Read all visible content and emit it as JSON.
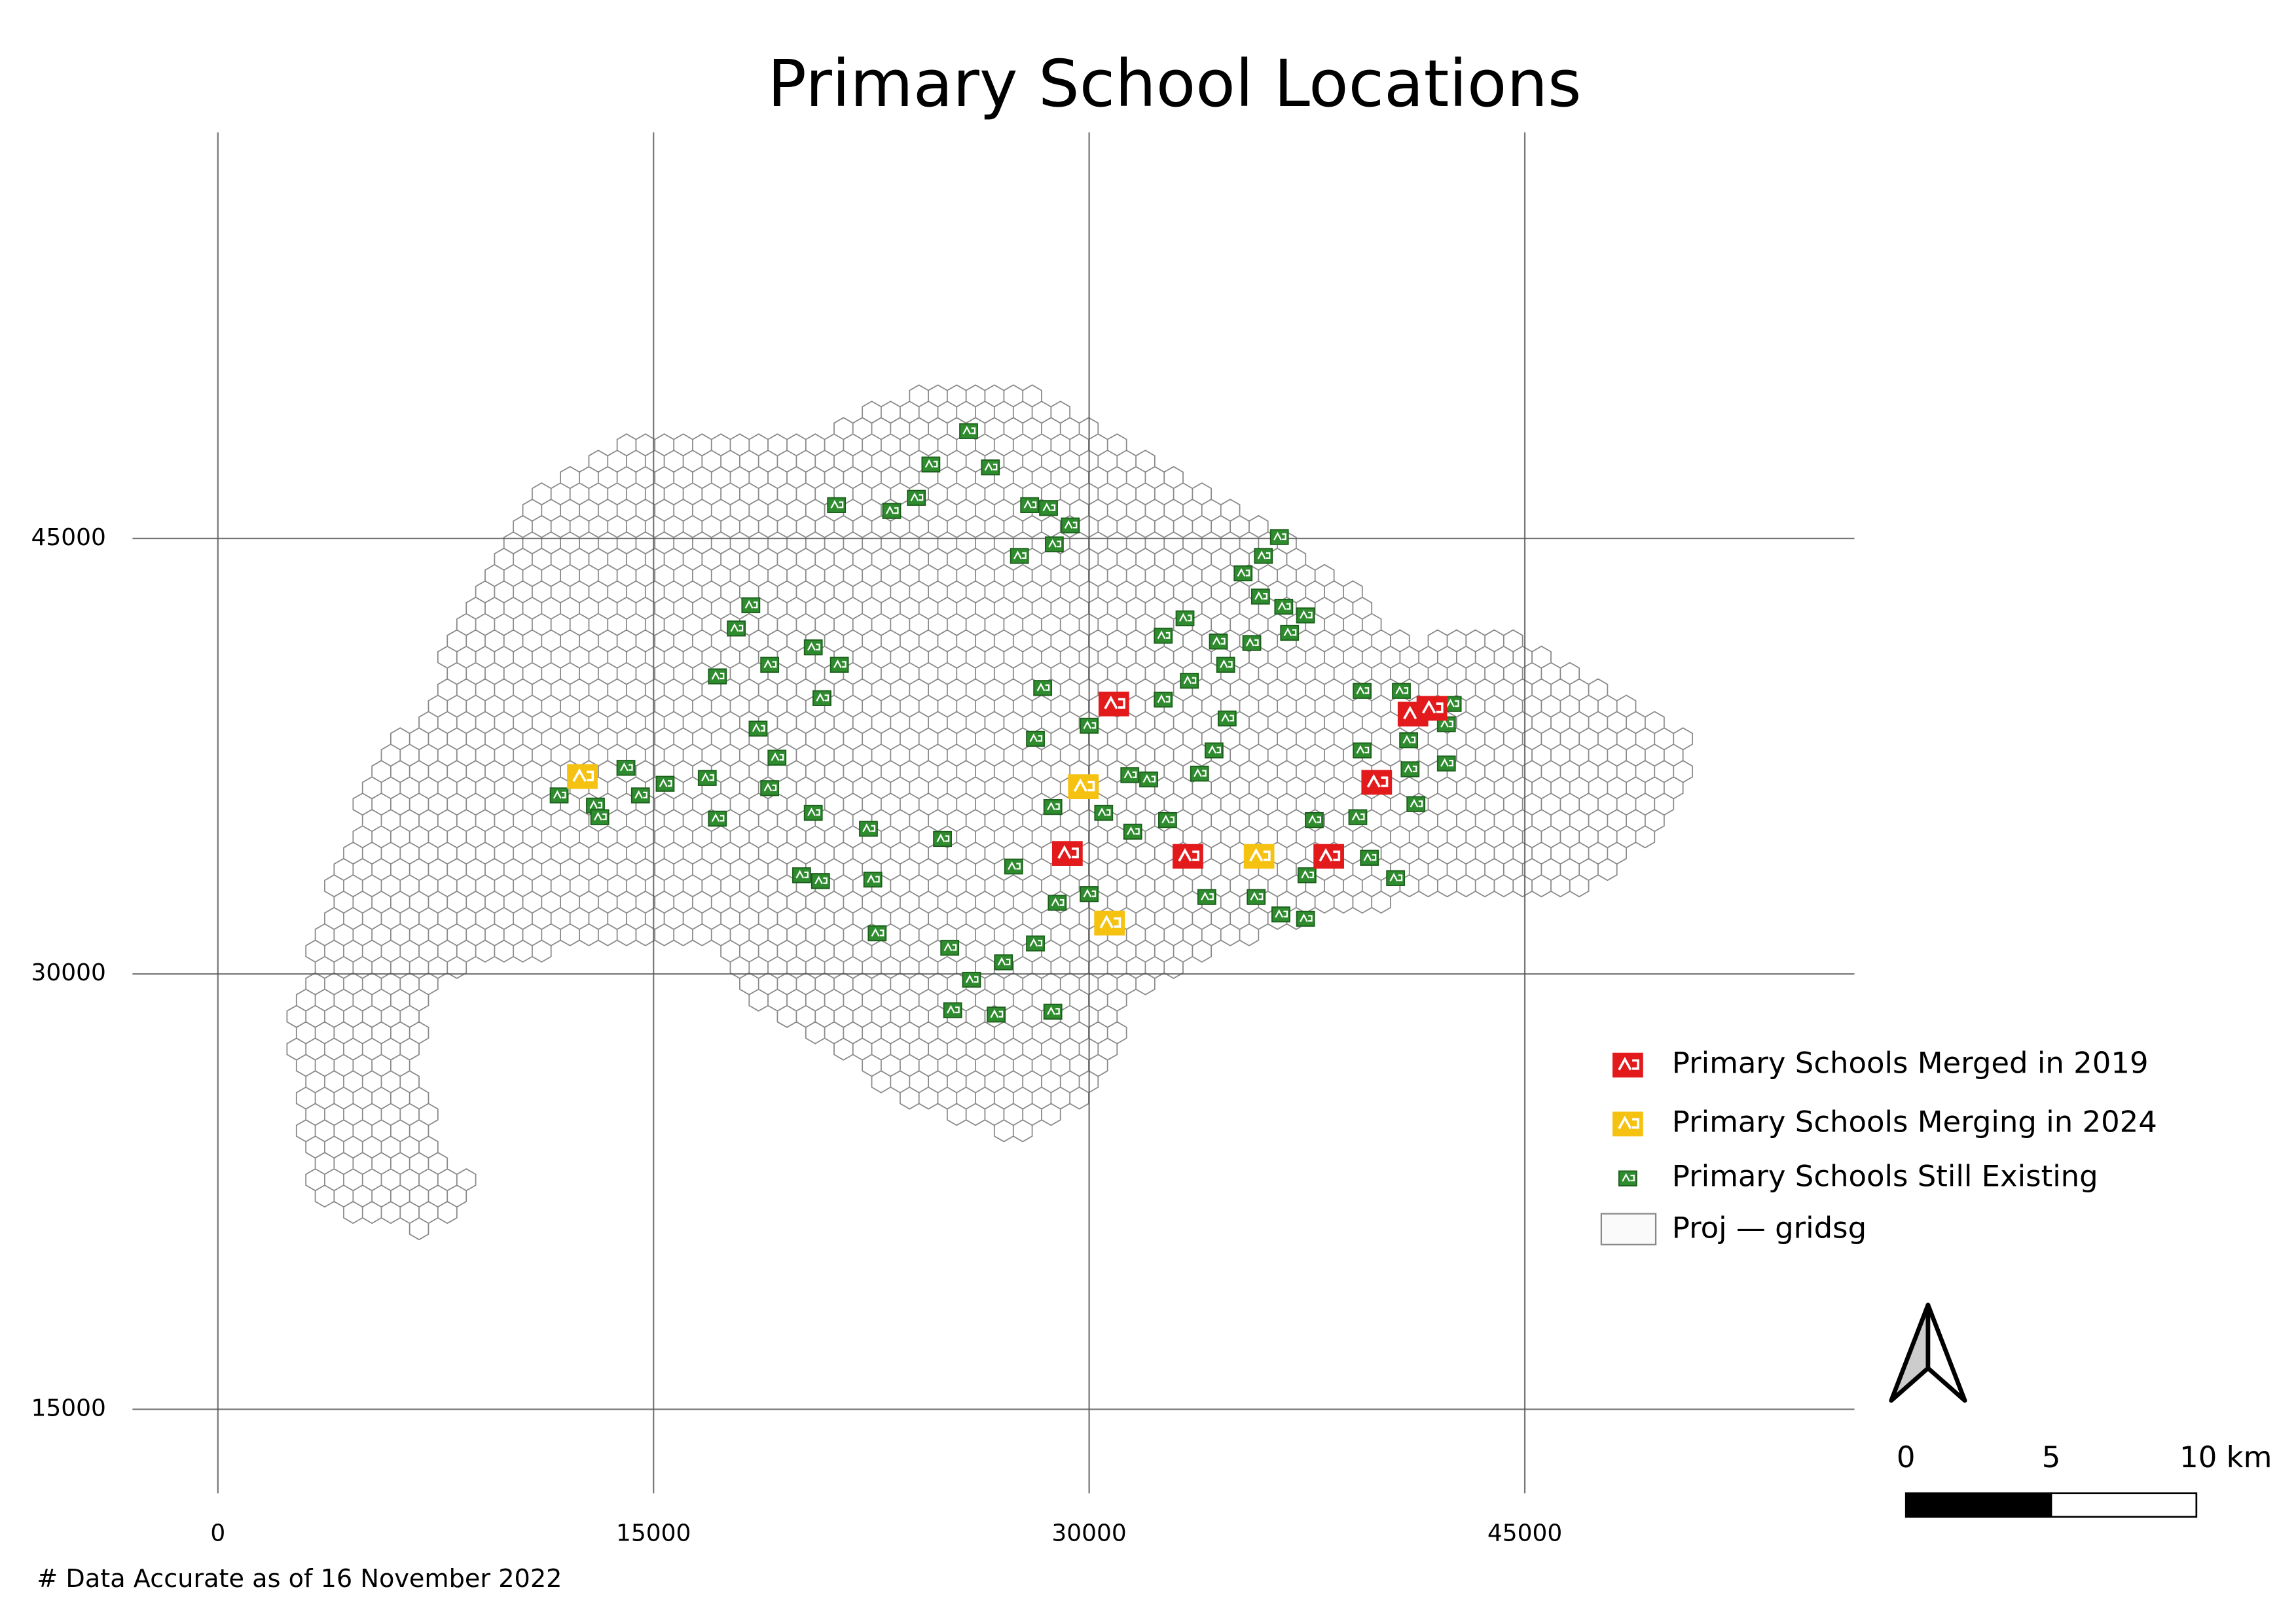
{
  "chart_data": {
    "type": "map",
    "title": "Primary School Locations",
    "footnote": "# Data Accurate as of 16 November 2022",
    "xlim": [
      -2940,
      56350
    ],
    "ylim": [
      12110,
      58990
    ],
    "xticks": [
      0,
      15000,
      30000,
      45000
    ],
    "yticks": [
      15000,
      30000,
      45000
    ],
    "grid": true,
    "grid_layer": "Proj — gridsg",
    "scale_bar": {
      "ticks": [
        0,
        5,
        {
          "value": 10,
          "label": "10 km"
        }
      ]
    },
    "series": [
      {
        "name": "Primary Schools Merged in 2019",
        "color": "#e31a1c",
        "x": [
          30850,
          29250,
          33400,
          38250,
          39900,
          41150,
          41800
        ],
        "y": [
          39300,
          34150,
          34050,
          34050,
          36600,
          38950,
          39150
        ]
      },
      {
        "name": "Primary Schools Merging in 2024",
        "color": "#f5c211",
        "x": [
          12550,
          29800,
          35850,
          30700
        ],
        "y": [
          36800,
          36450,
          34050,
          31750
        ]
      },
      {
        "name": "Primary Schools Still Existing",
        "color": "#2e8b2e",
        "x": [
          25850,
          26600,
          24550,
          23200,
          21300,
          24050,
          27950,
          28600,
          29350,
          27600,
          28800,
          18350,
          17850,
          17200,
          19000,
          20500,
          21400,
          20800,
          18600,
          19250,
          19000,
          20500,
          22400,
          16850,
          17200,
          15400,
          14050,
          11750,
          13000,
          20100,
          22550,
          22700,
          25200,
          24950,
          25950,
          27050,
          26800,
          25300,
          28750,
          28150,
          27400,
          28900,
          28150,
          28400,
          30000,
          28750,
          30500,
          31400,
          32050,
          31500,
          30000,
          32700,
          33800,
          34300,
          33450,
          34700,
          34750,
          32550,
          32550,
          33300,
          34450,
          35600,
          35300,
          35900,
          36000,
          36550,
          36700,
          37450,
          36900,
          35750,
          36600,
          37450,
          37500,
          37750,
          39250,
          39650,
          40550,
          39400,
          39400,
          40750,
          41000,
          41050,
          41250,
          42300,
          42500,
          42300,
          34050,
          20750,
          14550,
          13150
        ],
        "y": [
          48700,
          47450,
          47550,
          45950,
          46150,
          46400,
          46150,
          46050,
          45450,
          44400,
          44800,
          42700,
          41900,
          40250,
          40650,
          41250,
          40650,
          39500,
          38450,
          37450,
          36400,
          35550,
          35000,
          36750,
          35350,
          36550,
          37100,
          36150,
          35800,
          33400,
          33250,
          31400,
          30900,
          34650,
          29800,
          30400,
          28600,
          28750,
          28700,
          31050,
          33700,
          32450,
          38100,
          39850,
          38550,
          35750,
          35550,
          36850,
          36700,
          34900,
          32750,
          35300,
          36900,
          37700,
          40100,
          40650,
          38800,
          39450,
          41650,
          42250,
          41450,
          41400,
          43800,
          43000,
          44400,
          45050,
          42650,
          42350,
          41750,
          32650,
          32050,
          31900,
          33400,
          35300,
          35400,
          34000,
          33300,
          37700,
          39750,
          39750,
          38050,
          37050,
          35850,
          38600,
          39300,
          37250,
          32650,
          33200,
          36150,
          35400
        ]
      }
    ]
  }
}
